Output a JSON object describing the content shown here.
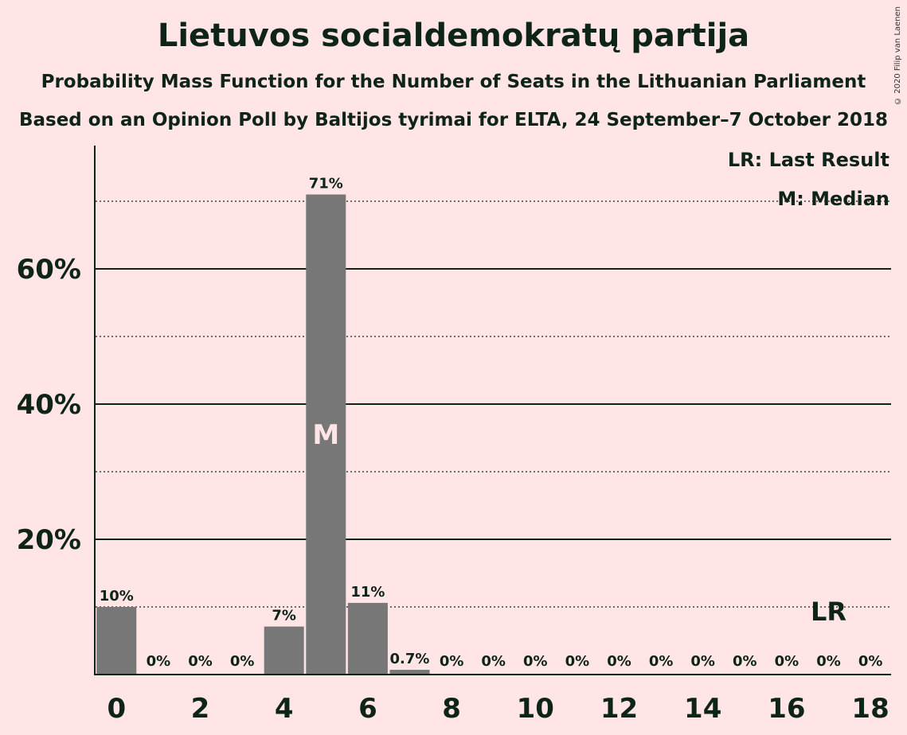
{
  "header": {
    "title": "Lietuvos socialdemokratų partija",
    "subtitle1": "Probability Mass Function for the Number of Seats in the Lithuanian Parliament",
    "subtitle2": "Based on an Opinion Poll by Baltijos tyrimai for ELTA, 24 September–7 October 2018"
  },
  "copyright": "© 2020 Filip van Laenen",
  "legend": {
    "last_result": "LR: Last Result",
    "median": "M: Median"
  },
  "markers": {
    "median_label": "M",
    "last_result_label": "LR"
  },
  "colors": {
    "background": "#FFE5E5",
    "bar": "#777777",
    "text": "#0F2418"
  },
  "chart_data": {
    "type": "bar",
    "x": [
      0,
      1,
      2,
      3,
      4,
      5,
      6,
      7,
      8,
      9,
      10,
      11,
      12,
      13,
      14,
      15,
      16,
      17,
      18
    ],
    "values": [
      10,
      0,
      0,
      0,
      7.1,
      71,
      10.6,
      0.7,
      0,
      0,
      0,
      0,
      0,
      0,
      0,
      0,
      0,
      0,
      0
    ],
    "data_labels": [
      "10%",
      "0%",
      "0%",
      "0%",
      "7%",
      "71%",
      "11%",
      "0.7%",
      "0%",
      "0%",
      "0%",
      "0%",
      "0%",
      "0%",
      "0%",
      "0%",
      "0%",
      "0%",
      "0%"
    ],
    "x_ticks": [
      0,
      2,
      4,
      6,
      8,
      10,
      12,
      14,
      16,
      18
    ],
    "x_tick_labels": [
      "0",
      "2",
      "4",
      "6",
      "8",
      "10",
      "12",
      "14",
      "16",
      "18"
    ],
    "y_ticks": [
      20,
      40,
      60
    ],
    "y_tick_labels": [
      "20%",
      "40%",
      "60%"
    ],
    "y_minor_gridlines": [
      10,
      30,
      50,
      70
    ],
    "ylim": [
      0,
      78
    ],
    "median_seat": 5,
    "last_result_seat": 17,
    "legend_position": "top-right"
  }
}
